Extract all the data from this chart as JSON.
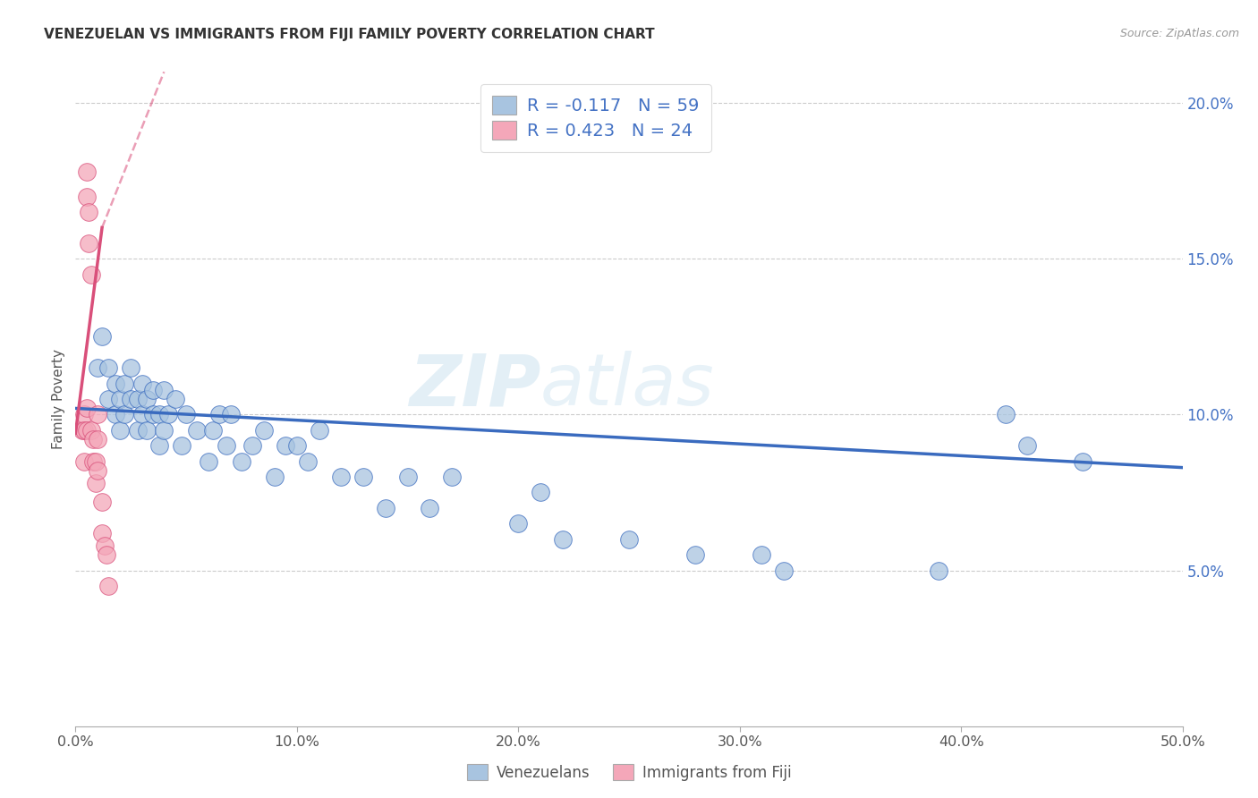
{
  "title": "VENEZUELAN VS IMMIGRANTS FROM FIJI FAMILY POVERTY CORRELATION CHART",
  "source": "Source: ZipAtlas.com",
  "ylabel": "Family Poverty",
  "legend_label_blue": "Venezuelans",
  "legend_label_pink": "Immigrants from Fiji",
  "R_blue": -0.117,
  "N_blue": 59,
  "R_pink": 0.423,
  "N_pink": 24,
  "xlim": [
    0.0,
    0.5
  ],
  "ylim": [
    0.0,
    0.21
  ],
  "xticks": [
    0.0,
    0.1,
    0.2,
    0.3,
    0.4,
    0.5
  ],
  "yticks_right": [
    0.05,
    0.1,
    0.15,
    0.2
  ],
  "color_blue": "#a8c4e0",
  "color_pink": "#f4a7b9",
  "line_blue": "#3a6bbf",
  "line_pink": "#d94f7a",
  "watermark_zip": "ZIP",
  "watermark_atlas": "atlas",
  "blue_x": [
    0.01,
    0.012,
    0.015,
    0.015,
    0.018,
    0.018,
    0.02,
    0.02,
    0.022,
    0.022,
    0.025,
    0.025,
    0.028,
    0.028,
    0.03,
    0.03,
    0.032,
    0.032,
    0.035,
    0.035,
    0.038,
    0.038,
    0.04,
    0.04,
    0.042,
    0.045,
    0.048,
    0.05,
    0.055,
    0.06,
    0.062,
    0.065,
    0.068,
    0.07,
    0.075,
    0.08,
    0.085,
    0.09,
    0.095,
    0.1,
    0.105,
    0.11,
    0.12,
    0.13,
    0.14,
    0.15,
    0.16,
    0.17,
    0.2,
    0.21,
    0.22,
    0.25,
    0.28,
    0.31,
    0.32,
    0.39,
    0.42,
    0.43,
    0.455
  ],
  "blue_y": [
    0.115,
    0.125,
    0.105,
    0.115,
    0.1,
    0.11,
    0.095,
    0.105,
    0.1,
    0.11,
    0.105,
    0.115,
    0.095,
    0.105,
    0.1,
    0.11,
    0.095,
    0.105,
    0.1,
    0.108,
    0.09,
    0.1,
    0.095,
    0.108,
    0.1,
    0.105,
    0.09,
    0.1,
    0.095,
    0.085,
    0.095,
    0.1,
    0.09,
    0.1,
    0.085,
    0.09,
    0.095,
    0.08,
    0.09,
    0.09,
    0.085,
    0.095,
    0.08,
    0.08,
    0.07,
    0.08,
    0.07,
    0.08,
    0.065,
    0.075,
    0.06,
    0.06,
    0.055,
    0.055,
    0.05,
    0.05,
    0.1,
    0.09,
    0.085
  ],
  "pink_x": [
    0.003,
    0.004,
    0.004,
    0.004,
    0.005,
    0.005,
    0.005,
    0.005,
    0.006,
    0.006,
    0.007,
    0.007,
    0.008,
    0.008,
    0.009,
    0.009,
    0.01,
    0.01,
    0.01,
    0.012,
    0.012,
    0.013,
    0.014,
    0.015
  ],
  "pink_y": [
    0.095,
    0.1,
    0.095,
    0.085,
    0.17,
    0.178,
    0.095,
    0.102,
    0.155,
    0.165,
    0.145,
    0.095,
    0.085,
    0.092,
    0.078,
    0.085,
    0.1,
    0.092,
    0.082,
    0.062,
    0.072,
    0.058,
    0.055,
    0.045
  ],
  "blue_line_x0": 0.0,
  "blue_line_y0": 0.102,
  "blue_line_x1": 0.5,
  "blue_line_y1": 0.083,
  "pink_line_solid_x0": 0.0,
  "pink_line_solid_y0": 0.094,
  "pink_line_solid_x1": 0.012,
  "pink_line_solid_y1": 0.16,
  "pink_line_dash_x0": 0.012,
  "pink_line_dash_y0": 0.16,
  "pink_line_dash_x1": 0.04,
  "pink_line_dash_y1": 0.21
}
